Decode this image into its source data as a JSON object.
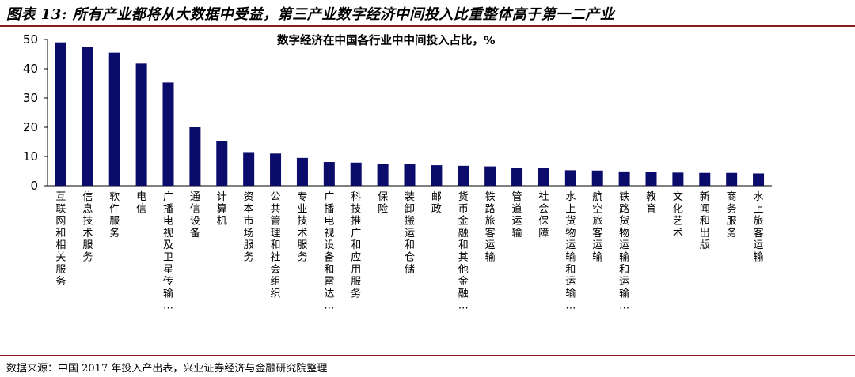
{
  "figure": {
    "title": "图表 13: 所有产业都将从大数据中受益，第三产业数字经济中间投入比重整体高于第一二产业",
    "source": "数据来源：中国 2017 年投入产出表，兴业证券经济与金融研究院整理"
  },
  "chart_data": {
    "type": "bar",
    "title": "数字经济在中国各行业中中间投入占比，%",
    "xlabel": "",
    "ylabel": "",
    "ylim": [
      0,
      50
    ],
    "yticks": [
      "0",
      "10",
      "20",
      "30",
      "40",
      "50"
    ],
    "grid": false,
    "legend": "none",
    "bar_color": "#0b0b6b",
    "categories": [
      "互联网和相关服务",
      "信息技术服务",
      "软件服务",
      "电信",
      "广播电视及卫星传输…",
      "通信设备",
      "计算机",
      "资本市场服务",
      "公共管理和社会组织",
      "专业技术服务",
      "广播电视设备和雷达…",
      "科技推广和应用服务",
      "保险",
      "装卸搬运和仓储",
      "邮政",
      "货币金融和其他金融…",
      "铁路旅客运输",
      "管道运输",
      "社会保障",
      "水上货物运输和运输…",
      "航空旅客运输",
      "铁路货物运输和运输…",
      "教育",
      "文化艺术",
      "新闻和出版",
      "商务服务",
      "水上旅客运输"
    ],
    "values": [
      49,
      47.5,
      45.5,
      41.8,
      35.3,
      20,
      15.2,
      11.5,
      11,
      9.5,
      8.1,
      7.9,
      7.5,
      7.3,
      7,
      6.8,
      6.6,
      6.2,
      6,
      5.3,
      5.2,
      4.9,
      4.7,
      4.5,
      4.4,
      4.4,
      4.2
    ]
  }
}
